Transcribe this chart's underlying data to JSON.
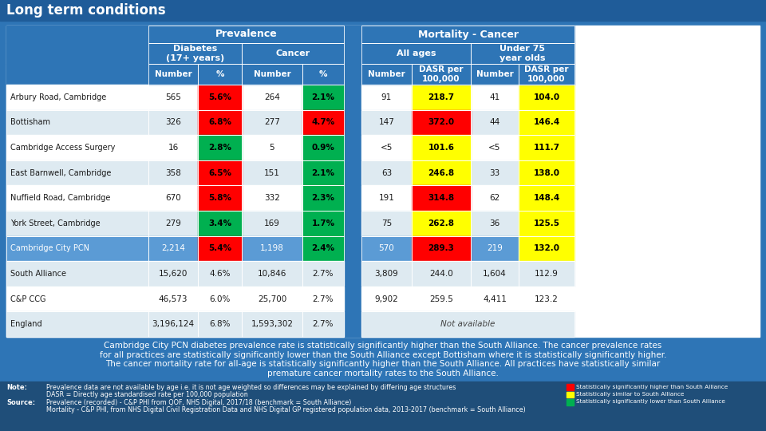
{
  "title": "Long term conditions",
  "title_bg": "#1F5C99",
  "title_fg": "#FFFFFF",
  "header_bg": "#2E75B6",
  "header_fg": "#FFFFFF",
  "row_bg_pcn": "#5B9BD5",
  "row_bg_pcn_fg": "#FFFFFF",
  "row_bg_even": "#FFFFFF",
  "row_bg_odd": "#DEEAF1",
  "outer_bg": "#2E75B6",
  "gap_bg": "#2E75B6",
  "rows": [
    {
      "name": "Arbury Road, Cambridge",
      "diab_n": "565",
      "diab_pct": "5.6%",
      "diab_pct_color": "red",
      "canc_n": "264",
      "canc_pct": "2.1%",
      "canc_pct_color": "green",
      "all_n": "91",
      "all_dasr": "218.7",
      "all_dasr_color": "yellow",
      "u75_n": "41",
      "u75_dasr": "104.0",
      "u75_dasr_color": "yellow"
    },
    {
      "name": "Bottisham",
      "diab_n": "326",
      "diab_pct": "6.8%",
      "diab_pct_color": "red",
      "canc_n": "277",
      "canc_pct": "4.7%",
      "canc_pct_color": "red",
      "all_n": "147",
      "all_dasr": "372.0",
      "all_dasr_color": "red",
      "u75_n": "44",
      "u75_dasr": "146.4",
      "u75_dasr_color": "yellow"
    },
    {
      "name": "Cambridge Access Surgery",
      "diab_n": "16",
      "diab_pct": "2.8%",
      "diab_pct_color": "green",
      "canc_n": "5",
      "canc_pct": "0.9%",
      "canc_pct_color": "green",
      "all_n": "<5",
      "all_dasr": "101.6",
      "all_dasr_color": "yellow",
      "u75_n": "<5",
      "u75_dasr": "111.7",
      "u75_dasr_color": "yellow"
    },
    {
      "name": "East Barnwell, Cambridge",
      "diab_n": "358",
      "diab_pct": "6.5%",
      "diab_pct_color": "red",
      "canc_n": "151",
      "canc_pct": "2.1%",
      "canc_pct_color": "green",
      "all_n": "63",
      "all_dasr": "246.8",
      "all_dasr_color": "yellow",
      "u75_n": "33",
      "u75_dasr": "138.0",
      "u75_dasr_color": "yellow"
    },
    {
      "name": "Nuffield Road, Cambridge",
      "diab_n": "670",
      "diab_pct": "5.8%",
      "diab_pct_color": "red",
      "canc_n": "332",
      "canc_pct": "2.3%",
      "canc_pct_color": "green",
      "all_n": "191",
      "all_dasr": "314.8",
      "all_dasr_color": "red",
      "u75_n": "62",
      "u75_dasr": "148.4",
      "u75_dasr_color": "yellow"
    },
    {
      "name": "York Street, Cambridge",
      "diab_n": "279",
      "diab_pct": "3.4%",
      "diab_pct_color": "green",
      "canc_n": "169",
      "canc_pct": "1.7%",
      "canc_pct_color": "green",
      "all_n": "75",
      "all_dasr": "262.8",
      "all_dasr_color": "yellow",
      "u75_n": "36",
      "u75_dasr": "125.5",
      "u75_dasr_color": "yellow"
    },
    {
      "name": "Cambridge City PCN",
      "diab_n": "2,214",
      "diab_pct": "5.4%",
      "diab_pct_color": "red",
      "canc_n": "1,198",
      "canc_pct": "2.4%",
      "canc_pct_color": "green",
      "all_n": "570",
      "all_dasr": "289.3",
      "all_dasr_color": "red",
      "u75_n": "219",
      "u75_dasr": "132.0",
      "u75_dasr_color": "yellow",
      "is_pcn": true
    },
    {
      "name": "South Alliance",
      "diab_n": "15,620",
      "diab_pct": "4.6%",
      "diab_pct_color": "none",
      "canc_n": "10,846",
      "canc_pct": "2.7%",
      "canc_pct_color": "none",
      "all_n": "3,809",
      "all_dasr": "244.0",
      "all_dasr_color": "none",
      "u75_n": "1,604",
      "u75_dasr": "112.9",
      "u75_dasr_color": "none"
    },
    {
      "name": "C&P CCG",
      "diab_n": "46,573",
      "diab_pct": "6.0%",
      "diab_pct_color": "none",
      "canc_n": "25,700",
      "canc_pct": "2.7%",
      "canc_pct_color": "none",
      "all_n": "9,902",
      "all_dasr": "259.5",
      "all_dasr_color": "none",
      "u75_n": "4,411",
      "u75_dasr": "123.2",
      "u75_dasr_color": "none"
    },
    {
      "name": "England",
      "diab_n": "3,196,124",
      "diab_pct": "6.8%",
      "diab_pct_color": "none",
      "canc_n": "1,593,302",
      "canc_pct": "2.7%",
      "canc_pct_color": "none",
      "all_n": "",
      "all_dasr": "",
      "all_dasr_color": "none",
      "u75_n": "",
      "u75_dasr": "",
      "u75_dasr_color": "none",
      "na_note": "Not available"
    }
  ],
  "footnote_text": "Cambridge City PCN diabetes prevalence rate is statistically significantly higher than the South Alliance. The cancer prevalence rates\nfor all practices are statistically significantly lower than the South Alliance except Bottisham where it is statistically significantly higher.\nThe cancer mortality rate for all-age is statistically significantly higher than the South Alliance. All practices have statistically similar\npremature cancer mortality rates to the South Alliance.",
  "note_line1": "Prevalence data are not available by age i.e. it is not age weighted so differences may be explained by differing age structures",
  "note_line2": "DASR = Directly age standardised rate per 100,000 population",
  "source_line1": "Prevalence (recorded) - C&P PHI from QOF, NHS Digital, 2017/18 (benchmark = South Alliance)",
  "source_line2": "Mortality - C&P PHI, from NHS Digital Civil Registration Data and NHS Digital GP registered population data, 2013-2017 (benchmark = South Alliance)",
  "legend_items": [
    {
      "label": "Statistically significantly higher than South Alliance",
      "color": "#FF0000"
    },
    {
      "label": "Statistically similar to South Alliance",
      "color": "#FFFF00"
    },
    {
      "label": "Statistically significantly lower than South Alliance",
      "color": "#00B050"
    }
  ]
}
